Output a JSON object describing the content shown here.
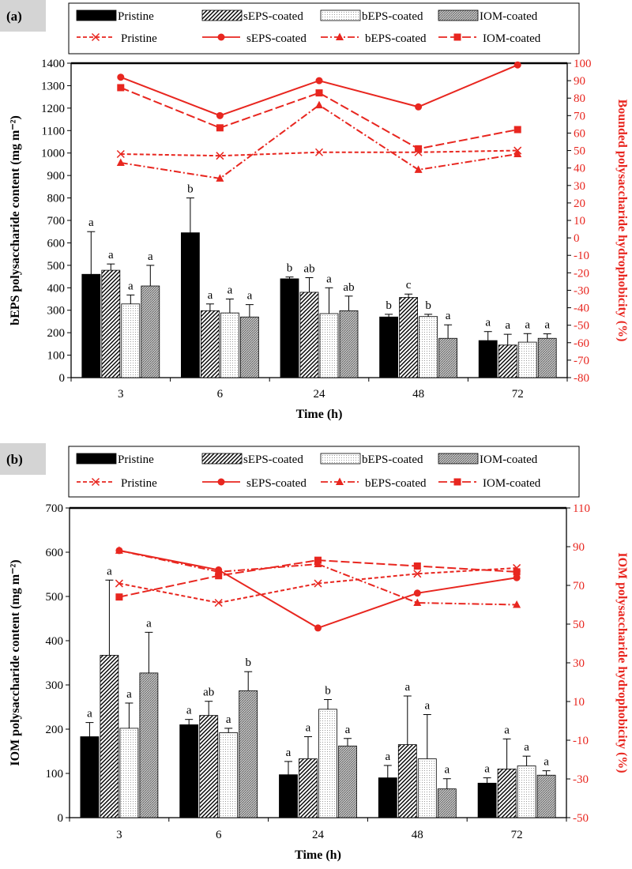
{
  "colors": {
    "pristine_bar": "#000000",
    "red": "#e8261f",
    "panel_label_bg": "#d4d4d4"
  },
  "chart_data": [
    {
      "type": "bar",
      "panel_label": "(a)",
      "categories": [
        "3",
        "6",
        "24",
        "48",
        "72"
      ],
      "xlabel": "Time (h)",
      "ylabel": "bEPS polysaccharide content (mg m⁻²)",
      "ylabel_right": "Bounded polysaccharide hydrophobicity (%)",
      "ylim": [
        0,
        1400
      ],
      "ystep": 100,
      "ylim_right": [
        -80,
        100
      ],
      "ystep_right": 10,
      "bar_series": [
        {
          "name": "Pristine",
          "pattern": "solid",
          "values": [
            460,
            645,
            440,
            270,
            165
          ],
          "errors": [
            190,
            155,
            8,
            12,
            40
          ],
          "letters": [
            "a",
            "b",
            "b",
            "b",
            "a"
          ]
        },
        {
          "name": "sEPS-coated",
          "pattern": "diag",
          "values": [
            478,
            298,
            380,
            357,
            145
          ],
          "errors": [
            28,
            30,
            65,
            15,
            48
          ],
          "letters": [
            "a",
            "a",
            "ab",
            "c",
            "a"
          ]
        },
        {
          "name": "bEPS-coated",
          "pattern": "dots",
          "values": [
            328,
            288,
            285,
            272,
            158
          ],
          "errors": [
            40,
            62,
            115,
            10,
            38
          ],
          "letters": [
            "a",
            "a",
            "a",
            "b",
            "a"
          ]
        },
        {
          "name": "IOM-coated",
          "pattern": "vert",
          "values": [
            408,
            270,
            298,
            175,
            175
          ],
          "errors": [
            92,
            55,
            65,
            60,
            20
          ],
          "letters": [
            "a",
            "a",
            "ab",
            "a",
            "a"
          ]
        }
      ],
      "line_series": [
        {
          "name": "Pristine",
          "style": "short-dash",
          "marker": "x",
          "values": [
            48,
            47,
            49,
            49,
            50
          ]
        },
        {
          "name": "sEPS-coated",
          "style": "solid",
          "marker": "circle",
          "values": [
            92,
            70,
            90,
            75,
            99
          ]
        },
        {
          "name": "bEPS-coated",
          "style": "dash-dot",
          "marker": "triangle",
          "values": [
            43,
            34,
            76,
            39,
            48
          ]
        },
        {
          "name": "IOM-coated",
          "style": "long-dash",
          "marker": "square",
          "values": [
            86,
            63,
            83,
            51,
            62
          ]
        }
      ]
    },
    {
      "type": "bar",
      "panel_label": "(b)",
      "categories": [
        "3",
        "6",
        "24",
        "48",
        "72"
      ],
      "xlabel": "Time (h)",
      "ylabel": "IOM polysaccharide content (mg m⁻²)",
      "ylabel_right": "IOM polysaccharide hydrophobicity (%)",
      "ylim": [
        0,
        700
      ],
      "ystep": 100,
      "ylim_right": [
        -50,
        110
      ],
      "ystep_right": 20,
      "bar_series": [
        {
          "name": "Pristine",
          "pattern": "solid",
          "values": [
            183,
            210,
            97,
            90,
            78
          ],
          "errors": [
            32,
            12,
            30,
            28,
            12
          ],
          "letters": [
            "a",
            "a",
            "a",
            "a",
            "a"
          ]
        },
        {
          "name": "sEPS-coated",
          "pattern": "diag",
          "values": [
            367,
            231,
            133,
            165,
            110
          ],
          "errors": [
            170,
            32,
            50,
            110,
            68
          ],
          "letters": [
            "a",
            "ab",
            "a",
            "a",
            "a"
          ]
        },
        {
          "name": "bEPS-coated",
          "pattern": "dots",
          "values": [
            202,
            192,
            245,
            133,
            117
          ],
          "errors": [
            57,
            10,
            22,
            100,
            22
          ],
          "letters": [
            "a",
            "a",
            "b",
            "a",
            "a"
          ]
        },
        {
          "name": "IOM-coated",
          "pattern": "vert",
          "values": [
            327,
            287,
            162,
            65,
            96
          ],
          "errors": [
            92,
            43,
            17,
            23,
            10
          ],
          "letters": [
            "a",
            "b",
            "a",
            "a",
            "a"
          ]
        }
      ],
      "line_series": [
        {
          "name": "Pristine",
          "style": "short-dash",
          "marker": "x",
          "values": [
            71,
            61,
            71,
            76,
            79
          ]
        },
        {
          "name": "sEPS-coated",
          "style": "solid",
          "marker": "circle",
          "values": [
            88,
            78,
            48,
            66,
            74
          ]
        },
        {
          "name": "bEPS-coated",
          "style": "dash-dot",
          "marker": "triangle",
          "values": [
            88,
            77,
            81,
            61,
            60
          ]
        },
        {
          "name": "IOM-coated",
          "style": "long-dash",
          "marker": "square",
          "values": [
            64,
            75,
            83,
            80,
            77
          ]
        }
      ]
    }
  ]
}
